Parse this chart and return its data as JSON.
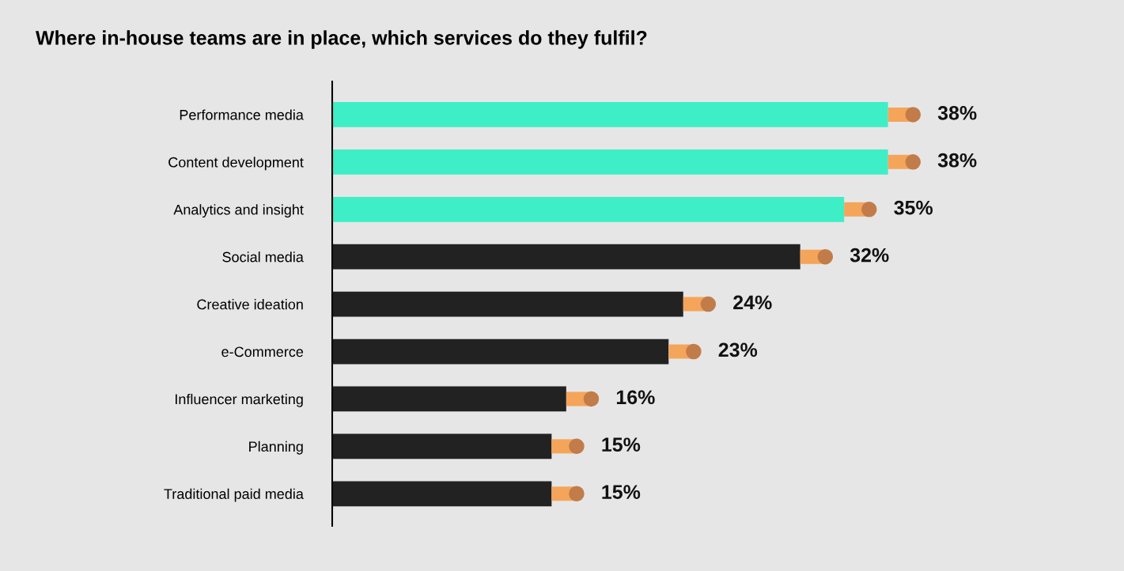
{
  "chart_data": {
    "type": "bar",
    "orientation": "horizontal",
    "title": "Where in-house teams are in place, which services do they fulfil?",
    "categories": [
      "Performance media",
      "Content development",
      "Analytics and insight",
      "Social media",
      "Creative ideation",
      "e-Commerce",
      "Influencer marketing",
      "Planning",
      "Traditional paid media"
    ],
    "values": [
      38,
      38,
      35,
      32,
      24,
      23,
      16,
      15,
      15
    ],
    "colors": [
      "#3eeec6",
      "#3eeec6",
      "#3eeec6",
      "#222222",
      "#222222",
      "#222222",
      "#222222",
      "#222222",
      "#222222"
    ],
    "value_labels": [
      "38%",
      "38%",
      "35%",
      "32%",
      "24%",
      "23%",
      "16%",
      "15%",
      "15%"
    ],
    "grid": false,
    "legend": false
  }
}
